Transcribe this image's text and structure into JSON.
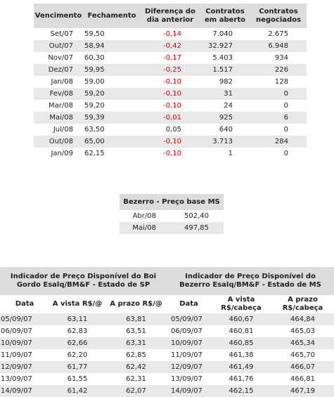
{
  "futures_table": {
    "header": [
      "Vencimento",
      "Fechamento",
      "Diferença do dia anterior",
      "Contratos em aberto",
      "Contratos negociados"
    ],
    "rows": [
      [
        "Set/07",
        "59,50",
        "-0,14",
        "7.040",
        "2.675"
      ],
      [
        "Out/07",
        "58,94",
        "-0,42",
        "32.927",
        "6.948"
      ],
      [
        "Nov/07",
        "60,30",
        "-0,17",
        "5.403",
        "934"
      ],
      [
        "Dez/07",
        "59,95",
        "-0,25",
        "1.517",
        "226"
      ],
      [
        "Jan/08",
        "59,00",
        "-0,10",
        "982",
        "128"
      ],
      [
        "Fev/08",
        "59,20",
        "-0,10",
        "31",
        "0"
      ],
      [
        "Mar/08",
        "59,20",
        "-0,10",
        "24",
        "0"
      ],
      [
        "Mai/08",
        "59,39",
        "-0,01",
        "925",
        "6"
      ],
      [
        "Jul/08",
        "63,50",
        "0,05",
        "640",
        "0"
      ],
      [
        "Out/08",
        "65,00",
        "-0,10",
        "3.713",
        "284"
      ],
      [
        "Jan/09",
        "62,15",
        "-0,10",
        "1",
        "0"
      ]
    ]
  },
  "bezerro_table": {
    "title": "Bezerro - Preço base MS",
    "rows": [
      [
        "Abr/08",
        "502,40"
      ],
      [
        "Mai/08",
        "497,85"
      ]
    ]
  },
  "boi_table": {
    "title": "Indicador de Preço Disponível do Boi Gordo Esalq/BM&F - Estado de SP",
    "header": [
      "Data",
      "A vista R$/@",
      "A prazo R$/@"
    ],
    "rows": [
      [
        "05/09/07",
        "63,11",
        "63,81"
      ],
      [
        "06/09/07",
        "62,83",
        "63,51"
      ],
      [
        "10/09/07",
        "62,66",
        "63,31"
      ],
      [
        "11/09/07",
        "62,20",
        "62,85"
      ],
      [
        "12/09/07",
        "61,77",
        "62,42"
      ],
      [
        "13/09/07",
        "61,55",
        "62,31"
      ],
      [
        "14/09/07",
        "61,42",
        "62,07"
      ]
    ]
  },
  "bezerro_indicator_table": {
    "title": "Indicador de Preço Disponível do Bezerro Esalq/BM&F - Estado de MS",
    "header": [
      "Data",
      "A vista R$/cabeça",
      "A prazo R$/cabeça"
    ],
    "rows": [
      [
        "05/09/07",
        "460,67",
        "464,84"
      ],
      [
        "06/09/07",
        "460,81",
        "465,03"
      ],
      [
        "10/09/07",
        "460,85",
        "465,34"
      ],
      [
        "11/09/07",
        "461,38",
        "465,70"
      ],
      [
        "12/09/07",
        "461,49",
        "466,07"
      ],
      [
        "13/09/07",
        "461,76",
        "466,81"
      ],
      [
        "14/09/07",
        "462,15",
        "467,19"
      ]
    ]
  }
}
